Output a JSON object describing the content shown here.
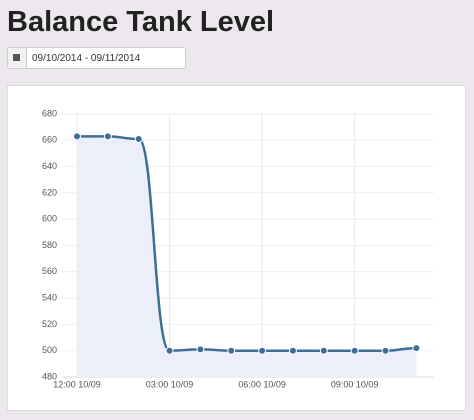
{
  "header": {
    "title": "Balance Tank Level",
    "date_range": "09/10/2014 - 09/11/2014"
  },
  "chart_data": {
    "type": "line",
    "categories": [
      "12:00 10/09",
      null,
      null,
      "03:00 10/09",
      null,
      null,
      "06:00 10/09",
      null,
      null,
      "09:00 10/09",
      null,
      null
    ],
    "values": [
      663,
      663,
      661,
      500,
      501,
      500,
      500,
      500,
      500,
      500,
      500,
      502
    ],
    "color": "#3d6f96",
    "area_color": "#eceefa",
    "ylim": [
      480,
      680
    ],
    "yticks": [
      480,
      500,
      520,
      540,
      560,
      580,
      600,
      620,
      640,
      660,
      680
    ],
    "grid": true
  }
}
